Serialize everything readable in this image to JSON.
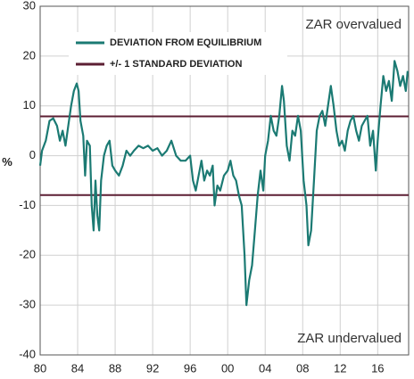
{
  "chart_data": {
    "type": "line",
    "y_label": "%",
    "annotations": [
      "ZAR overvalued",
      "ZAR undervalued"
    ],
    "xlim": [
      1980,
      2019.3
    ],
    "xticks": [
      {
        "value": 1980,
        "label": "80"
      },
      {
        "value": 1984,
        "label": "84"
      },
      {
        "value": 1988,
        "label": "88"
      },
      {
        "value": 1992,
        "label": "92"
      },
      {
        "value": 1996,
        "label": "96"
      },
      {
        "value": 2000,
        "label": "00"
      },
      {
        "value": 2004,
        "label": "04"
      },
      {
        "value": 2008,
        "label": "08"
      },
      {
        "value": 2012,
        "label": "12"
      },
      {
        "value": 2016,
        "label": "16"
      }
    ],
    "ylim": [
      -40,
      30
    ],
    "yticks": [
      -40,
      -30,
      -20,
      -10,
      0,
      10,
      20,
      30
    ],
    "grid": true,
    "series": [
      {
        "name": "DEVIATION FROM EQUILIBRIUM",
        "color": "#1b7a73",
        "x": [
          1980.0,
          1980.2,
          1980.6,
          1981.0,
          1981.4,
          1981.8,
          1982.1,
          1982.4,
          1982.7,
          1983.0,
          1983.3,
          1983.6,
          1983.9,
          1984.1,
          1984.3,
          1984.6,
          1984.8,
          1985.0,
          1985.3,
          1985.5,
          1985.7,
          1985.9,
          1986.1,
          1986.3,
          1986.5,
          1986.8,
          1987.1,
          1987.4,
          1987.7,
          1988.0,
          1988.4,
          1988.8,
          1989.2,
          1989.6,
          1990.0,
          1990.5,
          1991.0,
          1991.5,
          1992.0,
          1992.5,
          1993.0,
          1993.5,
          1994.0,
          1994.5,
          1995.0,
          1995.5,
          1996.0,
          1996.3,
          1996.6,
          1996.9,
          1997.2,
          1997.5,
          1997.8,
          1998.1,
          1998.4,
          1998.6,
          1998.9,
          1999.2,
          1999.6,
          2000.0,
          2000.3,
          2000.6,
          2000.9,
          2001.2,
          2001.5,
          2001.8,
          2002.0,
          2002.3,
          2002.6,
          2002.9,
          2003.2,
          2003.5,
          2003.8,
          2004.0,
          2004.3,
          2004.6,
          2004.9,
          2005.2,
          2005.5,
          2005.8,
          2006.0,
          2006.3,
          2006.6,
          2006.9,
          2007.2,
          2007.5,
          2007.8,
          2008.1,
          2008.4,
          2008.6,
          2008.9,
          2009.2,
          2009.5,
          2009.8,
          2010.1,
          2010.4,
          2010.7,
          2011.0,
          2011.3,
          2011.6,
          2011.9,
          2012.2,
          2012.5,
          2012.8,
          2013.1,
          2013.4,
          2013.7,
          2014.0,
          2014.3,
          2014.6,
          2014.9,
          2015.2,
          2015.5,
          2015.8,
          2016.0,
          2016.3,
          2016.6,
          2016.9,
          2017.2,
          2017.5,
          2017.8,
          2018.1,
          2018.4,
          2018.7,
          2019.0,
          2019.2
        ],
        "values": [
          -2,
          1,
          3,
          7,
          7.5,
          6,
          3,
          5,
          2,
          6,
          10,
          13,
          14.5,
          13,
          7,
          4,
          -4,
          3,
          2,
          -10,
          -15,
          -5,
          -12,
          -15,
          -5,
          0,
          2,
          3,
          -2,
          -3,
          -4,
          -2,
          1,
          0,
          1,
          2,
          1.5,
          2,
          1,
          1.5,
          0,
          1,
          3,
          0,
          -1,
          -1,
          0,
          -5,
          -7,
          -4,
          -1,
          -5,
          -3,
          -4,
          -2,
          -10,
          -6,
          -7,
          -4,
          -3,
          -1,
          -4,
          -5,
          -8,
          -10,
          -20,
          -30,
          -25,
          -22,
          -15,
          -8,
          -3,
          -7,
          0,
          3,
          8,
          5,
          4,
          8,
          14,
          11,
          2,
          -1,
          5,
          4,
          8,
          5,
          -5,
          -10,
          -18,
          -15,
          -5,
          5,
          8,
          9,
          6,
          10,
          14,
          10,
          5,
          2,
          3,
          1,
          5,
          7,
          8,
          5,
          3,
          6,
          7,
          8,
          2,
          5,
          -3,
          3,
          10,
          16,
          13,
          15,
          11,
          19,
          17,
          14,
          16,
          13,
          17
        ]
      }
    ],
    "std_lines": {
      "name": "+/- 1 STANDARD DEVIATION",
      "color": "#5c1f33",
      "values": [
        7.9,
        -7.9
      ]
    }
  }
}
